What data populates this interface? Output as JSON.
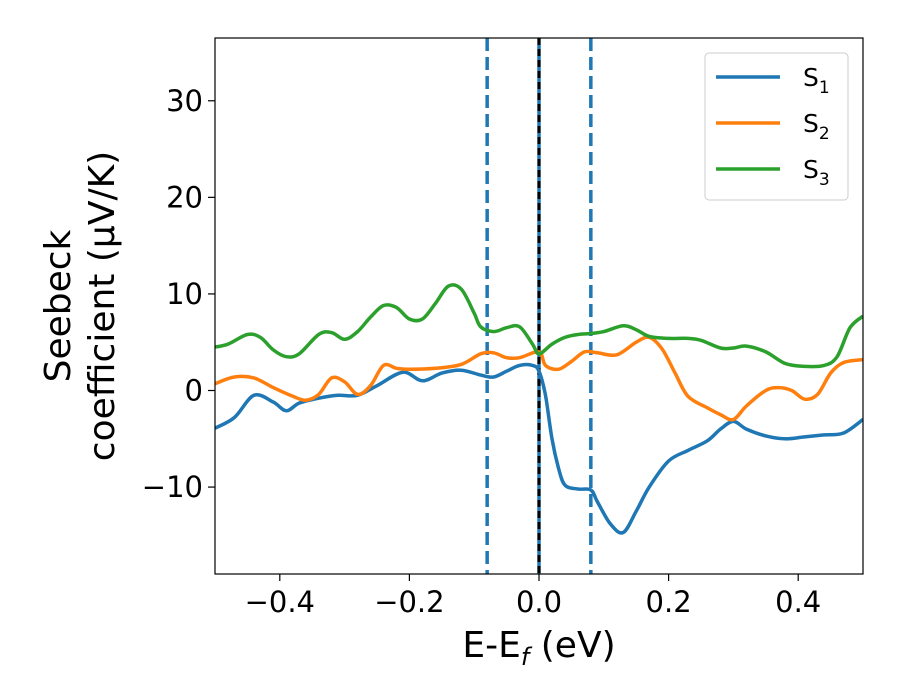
{
  "chart_data": {
    "type": "line",
    "xlabel": "E-E",
    "xlabel_sub": "f",
    "xlabel_unit": " (eV)",
    "ylabel_line1": "Seebeck",
    "ylabel_line2": "coefficient  (μV/K)",
    "xlim": [
      -0.5,
      0.5
    ],
    "ylim": [
      -19,
      36.5
    ],
    "x_ticks": [
      -0.4,
      -0.2,
      0.0,
      0.2,
      0.4
    ],
    "x_tick_labels": [
      "−0.4",
      "−0.2",
      "0.0",
      "0.2",
      "0.4"
    ],
    "y_ticks": [
      -10,
      0,
      10,
      20,
      30
    ],
    "y_tick_labels": [
      "−10",
      "0",
      "10",
      "20",
      "30"
    ],
    "grid": false,
    "legend_position": "top-right",
    "vlines": [
      {
        "x": -0.08,
        "style": "dashed",
        "color": "#1f77b4"
      },
      {
        "x": 0.0,
        "style": "solid",
        "color": "#1f77b4"
      },
      {
        "x": 0.0,
        "style": "dashed",
        "color": "#000000"
      },
      {
        "x": 0.08,
        "style": "dashed",
        "color": "#1f77b4"
      }
    ],
    "series": [
      {
        "name": "S",
        "sub": "1",
        "color": "#1f77b4",
        "points": [
          [
            -0.5,
            -3.9
          ],
          [
            -0.47,
            -2.8
          ],
          [
            -0.44,
            -0.5
          ],
          [
            -0.41,
            -1.2
          ],
          [
            -0.39,
            -2.1
          ],
          [
            -0.37,
            -1.3
          ],
          [
            -0.34,
            -0.8
          ],
          [
            -0.31,
            -0.5
          ],
          [
            -0.28,
            -0.5
          ],
          [
            -0.25,
            0.5
          ],
          [
            -0.21,
            1.9
          ],
          [
            -0.18,
            1.0
          ],
          [
            -0.15,
            1.8
          ],
          [
            -0.12,
            2.1
          ],
          [
            -0.09,
            1.6
          ],
          [
            -0.07,
            1.4
          ],
          [
            -0.05,
            2.0
          ],
          [
            -0.03,
            2.6
          ],
          [
            -0.01,
            2.6
          ],
          [
            0.0,
            2.0
          ],
          [
            0.01,
            -0.5
          ],
          [
            0.02,
            -5.0
          ],
          [
            0.03,
            -8.0
          ],
          [
            0.04,
            -9.8
          ],
          [
            0.06,
            -10.2
          ],
          [
            0.08,
            -10.3
          ],
          [
            0.09,
            -11.5
          ],
          [
            0.11,
            -13.8
          ],
          [
            0.13,
            -14.7
          ],
          [
            0.15,
            -12.5
          ],
          [
            0.17,
            -10.0
          ],
          [
            0.2,
            -7.3
          ],
          [
            0.23,
            -6.2
          ],
          [
            0.26,
            -5.2
          ],
          [
            0.28,
            -4.0
          ],
          [
            0.3,
            -3.2
          ],
          [
            0.32,
            -4.0
          ],
          [
            0.35,
            -4.7
          ],
          [
            0.38,
            -5.0
          ],
          [
            0.41,
            -4.8
          ],
          [
            0.44,
            -4.6
          ],
          [
            0.47,
            -4.4
          ],
          [
            0.5,
            -3.0
          ]
        ]
      },
      {
        "name": "S",
        "sub": "2",
        "color": "#ff7f0e",
        "points": [
          [
            -0.5,
            0.7
          ],
          [
            -0.47,
            1.4
          ],
          [
            -0.44,
            1.3
          ],
          [
            -0.41,
            0.3
          ],
          [
            -0.38,
            -0.6
          ],
          [
            -0.36,
            -1.0
          ],
          [
            -0.34,
            -0.4
          ],
          [
            -0.32,
            1.3
          ],
          [
            -0.3,
            0.9
          ],
          [
            -0.28,
            -0.4
          ],
          [
            -0.26,
            0.5
          ],
          [
            -0.24,
            2.6
          ],
          [
            -0.22,
            2.3
          ],
          [
            -0.2,
            2.2
          ],
          [
            -0.16,
            2.3
          ],
          [
            -0.12,
            2.7
          ],
          [
            -0.09,
            3.8
          ],
          [
            -0.07,
            3.9
          ],
          [
            -0.05,
            3.4
          ],
          [
            -0.03,
            3.4
          ],
          [
            0.0,
            4.0
          ],
          [
            0.01,
            2.6
          ],
          [
            0.03,
            2.2
          ],
          [
            0.05,
            3.0
          ],
          [
            0.07,
            4.0
          ],
          [
            0.09,
            3.9
          ],
          [
            0.12,
            3.7
          ],
          [
            0.15,
            5.0
          ],
          [
            0.17,
            5.5
          ],
          [
            0.19,
            4.3
          ],
          [
            0.21,
            1.8
          ],
          [
            0.23,
            -0.6
          ],
          [
            0.26,
            -1.8
          ],
          [
            0.28,
            -2.5
          ],
          [
            0.3,
            -3.0
          ],
          [
            0.32,
            -1.6
          ],
          [
            0.35,
            0.0
          ],
          [
            0.37,
            0.3
          ],
          [
            0.39,
            0.0
          ],
          [
            0.41,
            -0.9
          ],
          [
            0.43,
            -0.4
          ],
          [
            0.45,
            1.8
          ],
          [
            0.47,
            2.9
          ],
          [
            0.5,
            3.2
          ]
        ]
      },
      {
        "name": "S",
        "sub": "3",
        "color": "#2ca02c",
        "points": [
          [
            -0.5,
            4.5
          ],
          [
            -0.48,
            4.8
          ],
          [
            -0.45,
            5.8
          ],
          [
            -0.43,
            5.5
          ],
          [
            -0.41,
            4.2
          ],
          [
            -0.39,
            3.5
          ],
          [
            -0.37,
            3.8
          ],
          [
            -0.34,
            5.8
          ],
          [
            -0.32,
            6.0
          ],
          [
            -0.3,
            5.3
          ],
          [
            -0.28,
            6.1
          ],
          [
            -0.26,
            7.6
          ],
          [
            -0.24,
            8.8
          ],
          [
            -0.22,
            8.6
          ],
          [
            -0.2,
            7.4
          ],
          [
            -0.18,
            7.4
          ],
          [
            -0.16,
            9.0
          ],
          [
            -0.14,
            10.8
          ],
          [
            -0.12,
            10.5
          ],
          [
            -0.1,
            8.0
          ],
          [
            -0.09,
            6.6
          ],
          [
            -0.07,
            6.1
          ],
          [
            -0.05,
            6.5
          ],
          [
            -0.03,
            6.6
          ],
          [
            -0.01,
            4.8
          ],
          [
            0.0,
            3.8
          ],
          [
            0.02,
            4.8
          ],
          [
            0.04,
            5.5
          ],
          [
            0.06,
            5.8
          ],
          [
            0.08,
            5.9
          ],
          [
            0.1,
            6.1
          ],
          [
            0.13,
            6.7
          ],
          [
            0.15,
            6.3
          ],
          [
            0.17,
            5.6
          ],
          [
            0.2,
            5.4
          ],
          [
            0.23,
            5.4
          ],
          [
            0.25,
            5.2
          ],
          [
            0.28,
            4.4
          ],
          [
            0.3,
            4.4
          ],
          [
            0.32,
            4.6
          ],
          [
            0.35,
            4.0
          ],
          [
            0.38,
            2.8
          ],
          [
            0.41,
            2.5
          ],
          [
            0.44,
            2.6
          ],
          [
            0.46,
            3.5
          ],
          [
            0.48,
            6.5
          ],
          [
            0.5,
            7.7
          ]
        ]
      }
    ]
  }
}
